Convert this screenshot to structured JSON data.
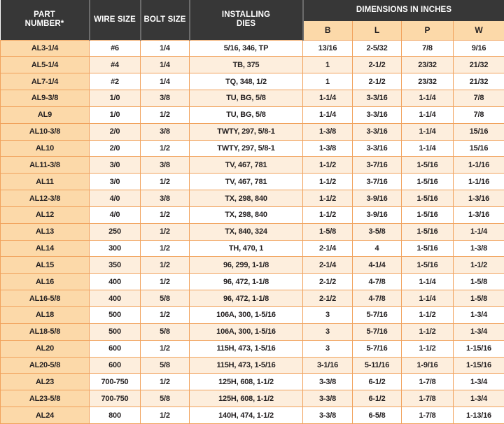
{
  "colors": {
    "header_bg": "#373737",
    "header_separator": "#6b6b6b",
    "header_text": "#ffffff",
    "accent_peach": "#fcd9a9",
    "row_alt": "#fdeedd",
    "row_white": "#ffffff",
    "border_orange": "#f1a25c",
    "text_dark": "#231f20"
  },
  "table": {
    "headers": {
      "part_number": "PART NUMBER*",
      "wire_size": "WIRE SIZE",
      "bolt_size": "BOLT SIZE",
      "installing_dies": "INSTALLING DIES",
      "dimensions_group": "DIMENSIONS IN INCHES",
      "dimension_cols": [
        "B",
        "L",
        "P",
        "W"
      ]
    },
    "rows": [
      [
        "AL3-1/4",
        "#6",
        "1/4",
        "5/16, 346, TP",
        "13/16",
        "2-5/32",
        "7/8",
        "9/16"
      ],
      [
        "AL5-1/4",
        "#4",
        "1/4",
        "TB, 375",
        "1",
        "2-1/2",
        "23/32",
        "21/32"
      ],
      [
        "AL7-1/4",
        "#2",
        "1/4",
        "TQ, 348, 1/2",
        "1",
        "2-1/2",
        "23/32",
        "21/32"
      ],
      [
        "AL9-3/8",
        "1/0",
        "3/8",
        "TU, BG, 5/8",
        "1-1/4",
        "3-3/16",
        "1-1/4",
        "7/8"
      ],
      [
        "AL9",
        "1/0",
        "1/2",
        "TU, BG, 5/8",
        "1-1/4",
        "3-3/16",
        "1-1/4",
        "7/8"
      ],
      [
        "AL10-3/8",
        "2/0",
        "3/8",
        "TWTY, 297, 5/8-1",
        "1-3/8",
        "3-3/16",
        "1-1/4",
        "15/16"
      ],
      [
        "AL10",
        "2/0",
        "1/2",
        "TWTY, 297, 5/8-1",
        "1-3/8",
        "3-3/16",
        "1-1/4",
        "15/16"
      ],
      [
        "AL11-3/8",
        "3/0",
        "3/8",
        "TV, 467, 781",
        "1-1/2",
        "3-7/16",
        "1-5/16",
        "1-1/16"
      ],
      [
        "AL11",
        "3/0",
        "1/2",
        "TV, 467, 781",
        "1-1/2",
        "3-7/16",
        "1-5/16",
        "1-1/16"
      ],
      [
        "AL12-3/8",
        "4/0",
        "3/8",
        "TX, 298, 840",
        "1-1/2",
        "3-9/16",
        "1-5/16",
        "1-3/16"
      ],
      [
        "AL12",
        "4/0",
        "1/2",
        "TX, 298, 840",
        "1-1/2",
        "3-9/16",
        "1-5/16",
        "1-3/16"
      ],
      [
        "AL13",
        "250",
        "1/2",
        "TX, 840, 324",
        "1-5/8",
        "3-5/8",
        "1-5/16",
        "1-1/4"
      ],
      [
        "AL14",
        "300",
        "1/2",
        "TH, 470, 1",
        "2-1/4",
        "4",
        "1-5/16",
        "1-3/8"
      ],
      [
        "AL15",
        "350",
        "1/2",
        "96, 299, 1-1/8",
        "2-1/4",
        "4-1/4",
        "1-5/16",
        "1-1/2"
      ],
      [
        "AL16",
        "400",
        "1/2",
        "96, 472, 1-1/8",
        "2-1/2",
        "4-7/8",
        "1-1/4",
        "1-5/8"
      ],
      [
        "AL16-5/8",
        "400",
        "5/8",
        "96, 472, 1-1/8",
        "2-1/2",
        "4-7/8",
        "1-1/4",
        "1-5/8"
      ],
      [
        "AL18",
        "500",
        "1/2",
        "106A, 300, 1-5/16",
        "3",
        "5-7/16",
        "1-1/2",
        "1-3/4"
      ],
      [
        "AL18-5/8",
        "500",
        "5/8",
        "106A, 300, 1-5/16",
        "3",
        "5-7/16",
        "1-1/2",
        "1-3/4"
      ],
      [
        "AL20",
        "600",
        "1/2",
        "115H, 473, 1-5/16",
        "3",
        "5-7/16",
        "1-1/2",
        "1-15/16"
      ],
      [
        "AL20-5/8",
        "600",
        "5/8",
        "115H, 473, 1-5/16",
        "3-1/16",
        "5-11/16",
        "1-9/16",
        "1-15/16"
      ],
      [
        "AL23",
        "700-750",
        "1/2",
        "125H, 608, 1-1/2",
        "3-3/8",
        "6-1/2",
        "1-7/8",
        "1-3/4"
      ],
      [
        "AL23-5/8",
        "700-750",
        "5/8",
        "125H, 608, 1-1/2",
        "3-3/8",
        "6-1/2",
        "1-7/8",
        "1-3/4"
      ],
      [
        "AL24",
        "800",
        "1/2",
        "140H, 474, 1-1/2",
        "3-3/8",
        "6-5/8",
        "1-7/8",
        "1-13/16"
      ]
    ]
  }
}
